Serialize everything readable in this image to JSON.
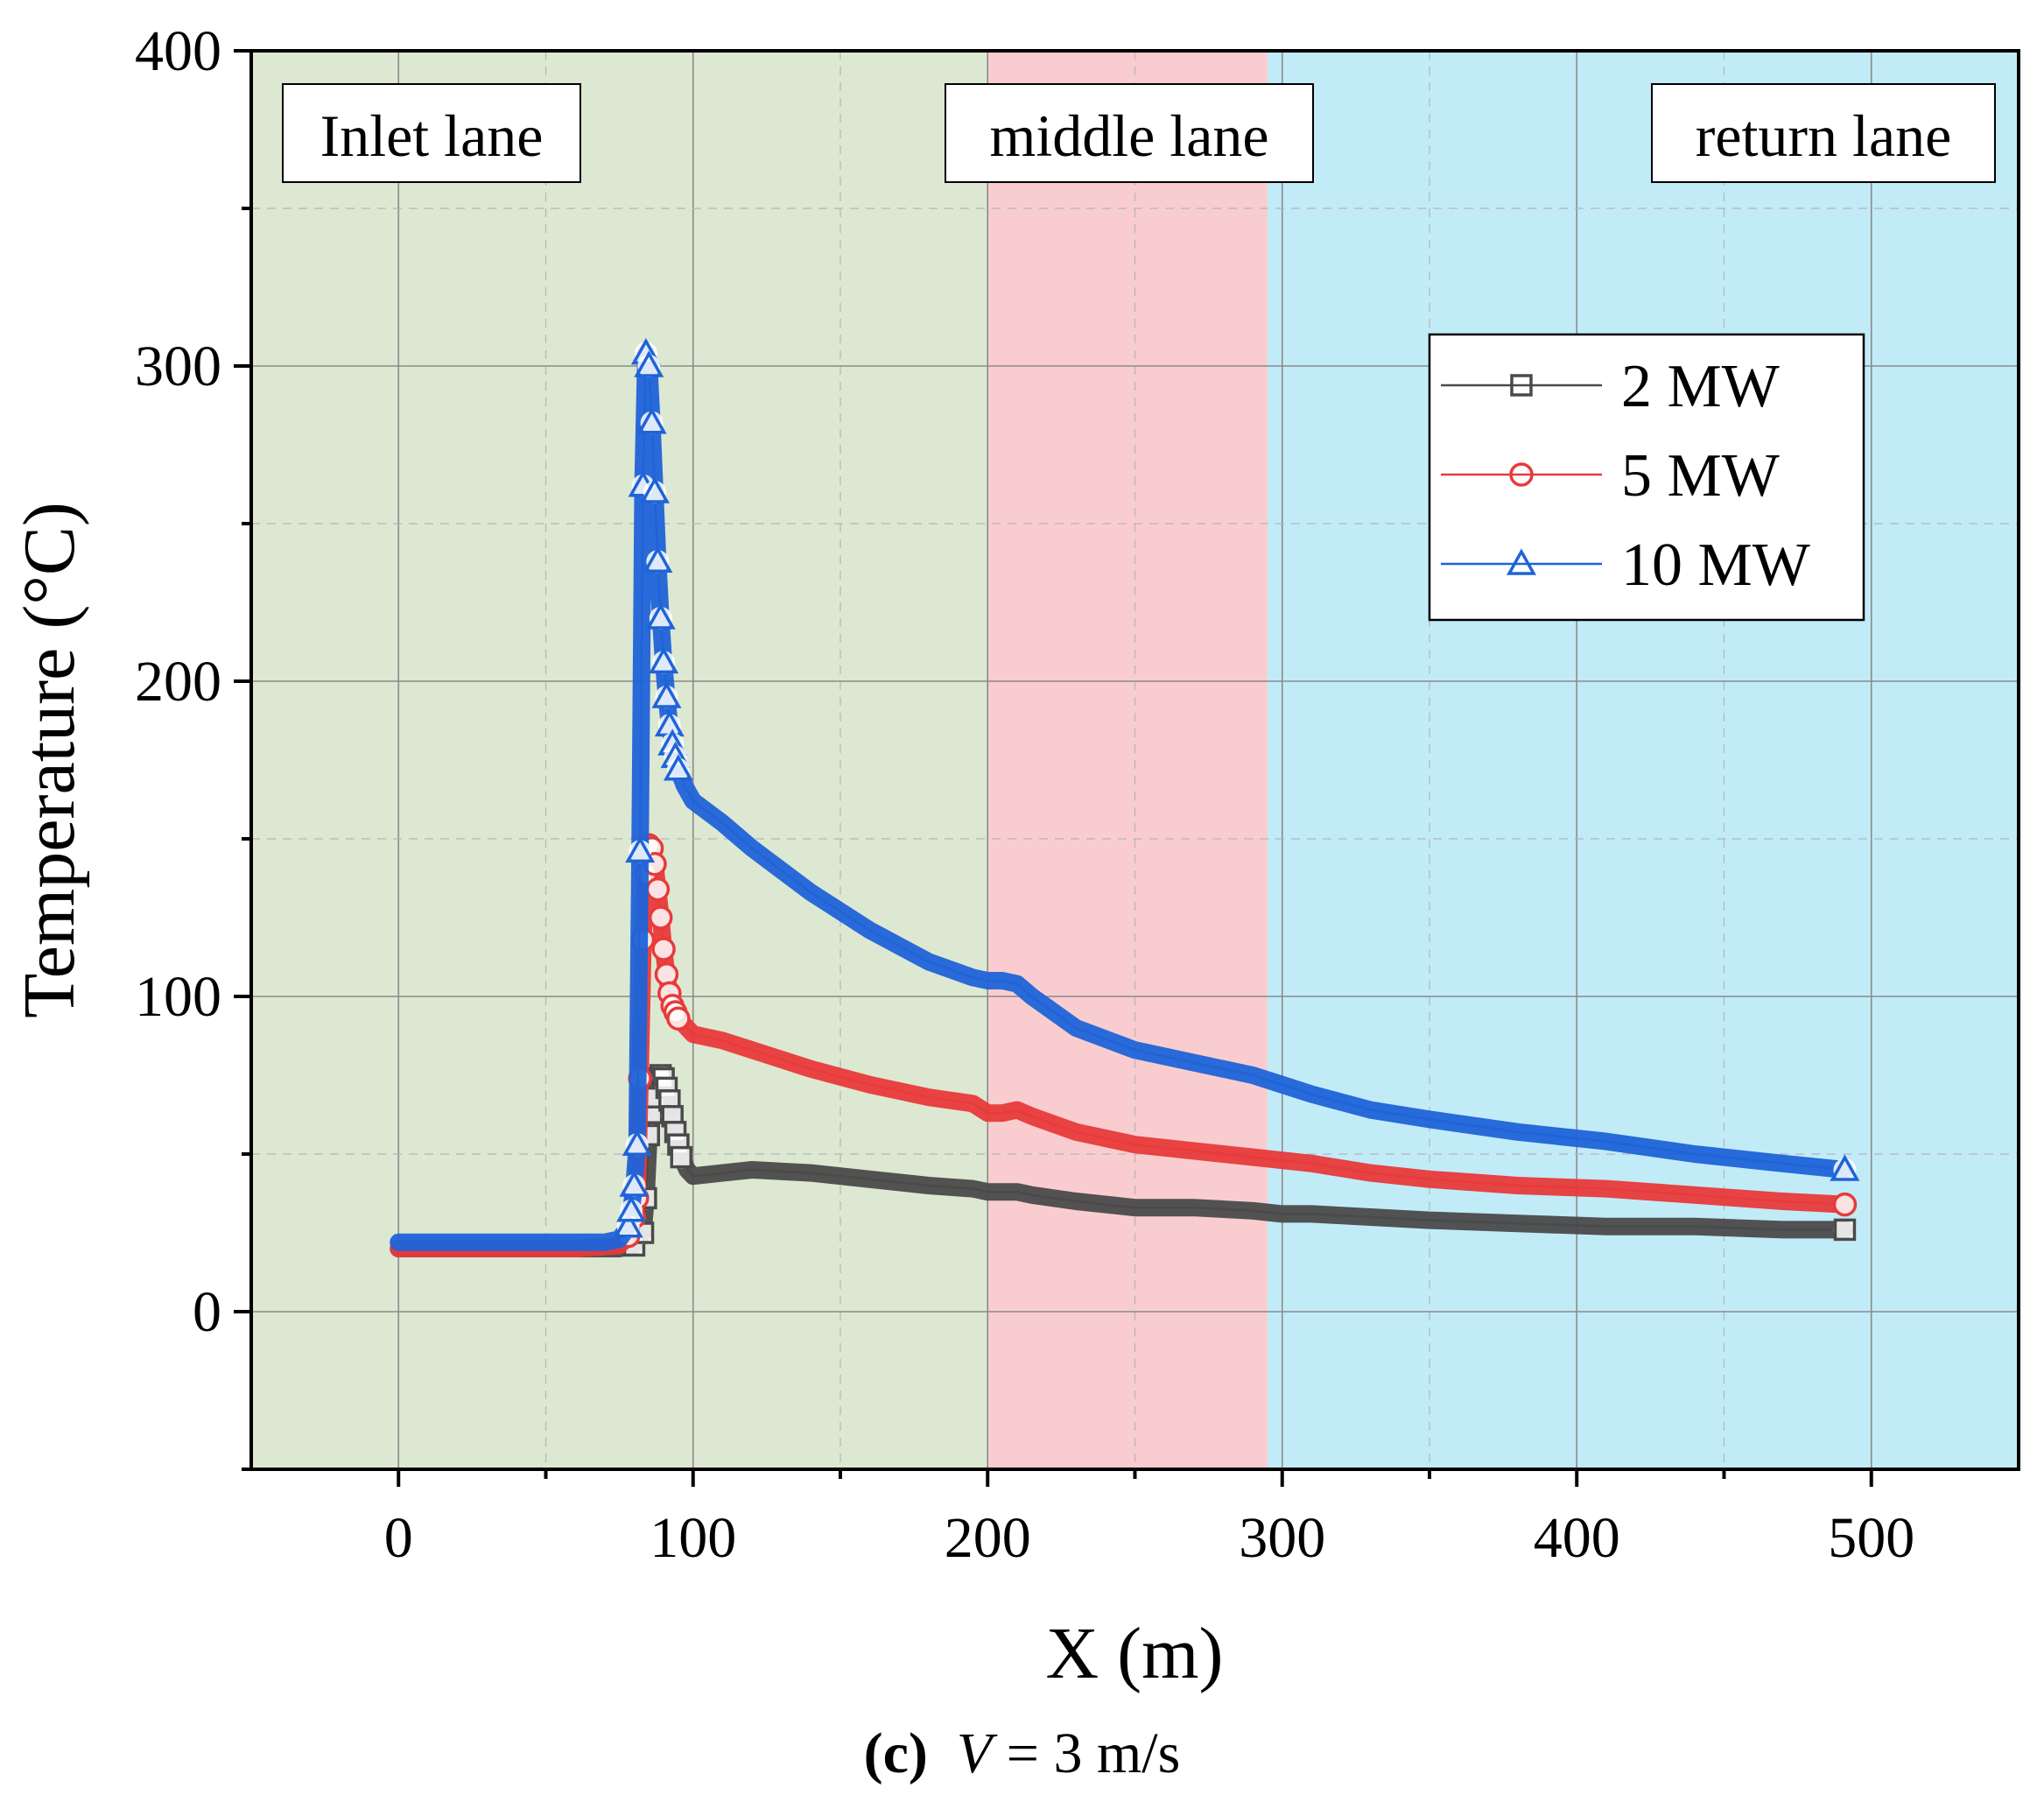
{
  "chart_data": {
    "type": "line",
    "title": "",
    "xlabel": "X (m)",
    "ylabel": "Temperature (°C)",
    "xlim": [
      -50,
      550
    ],
    "ylim": [
      -50,
      400
    ],
    "x_ticks": [
      0,
      100,
      200,
      300,
      400,
      500
    ],
    "y_ticks": [
      0,
      100,
      200,
      300,
      400
    ],
    "grid": true,
    "legend_position": "upper-right",
    "regions": [
      {
        "label": "Inlet lane",
        "x_start": -50,
        "x_end": 200,
        "color": "#dde8d2"
      },
      {
        "label": "middle lane",
        "x_start": 200,
        "x_end": 295,
        "color": "#f9cdcf"
      },
      {
        "label": "return lane",
        "x_start": 295,
        "x_end": 550,
        "color": "#c2ebf8"
      }
    ],
    "series": [
      {
        "name": "2 MW",
        "color": "#4a4a4a",
        "marker": "square",
        "x": [
          0,
          20,
          40,
          60,
          75,
          80,
          83,
          84,
          85,
          86,
          87,
          88,
          89,
          90,
          91,
          92,
          93,
          94,
          95,
          96,
          98,
          100,
          110,
          120,
          140,
          160,
          180,
          195,
          200,
          205,
          210,
          215,
          230,
          250,
          270,
          290,
          300,
          310,
          330,
          350,
          380,
          410,
          440,
          470,
          491
        ],
        "y": [
          20,
          20,
          20,
          20,
          20,
          21,
          25,
          36,
          56,
          63,
          68,
          74,
          75,
          74,
          71,
          67,
          62,
          57,
          53,
          49,
          45,
          43,
          44,
          45,
          44,
          42,
          40,
          39,
          38,
          38,
          38,
          37,
          35,
          33,
          33,
          32,
          31,
          31,
          30,
          29,
          28,
          27,
          27,
          26,
          26
        ]
      },
      {
        "name": "5 MW",
        "color": "#e83a3a",
        "marker": "circle",
        "x": [
          0,
          20,
          40,
          60,
          75,
          78,
          80,
          81,
          82,
          83,
          84,
          85,
          86,
          87,
          88,
          89,
          90,
          91,
          92,
          93,
          94,
          95,
          97,
          100,
          110,
          120,
          140,
          160,
          180,
          195,
          200,
          205,
          210,
          215,
          230,
          250,
          270,
          290,
          300,
          310,
          330,
          350,
          380,
          410,
          440,
          470,
          491
        ],
        "y": [
          20,
          20,
          20,
          20,
          21,
          24,
          30,
          36,
          74,
          118,
          139,
          148,
          147,
          142,
          134,
          125,
          115,
          107,
          101,
          97,
          95,
          93,
          91,
          88,
          86,
          83,
          77,
          72,
          68,
          66,
          63,
          63,
          64,
          62,
          57,
          53,
          51,
          49,
          48,
          47,
          44,
          42,
          40,
          39,
          37,
          35,
          34
        ]
      },
      {
        "name": "10 MW",
        "color": "#1f63d8",
        "marker": "triangle",
        "x": [
          0,
          20,
          40,
          60,
          70,
          75,
          78,
          79,
          80,
          81,
          82,
          83,
          84,
          85,
          86,
          87,
          88,
          89,
          90,
          91,
          92,
          93,
          94,
          95,
          97,
          100,
          110,
          120,
          140,
          160,
          180,
          195,
          200,
          205,
          210,
          215,
          230,
          250,
          270,
          290,
          300,
          310,
          330,
          350,
          380,
          410,
          440,
          470,
          491
        ],
        "y": [
          22,
          22,
          22,
          22,
          22,
          23,
          27,
          32,
          40,
          53,
          146,
          262,
          304,
          300,
          282,
          260,
          238,
          220,
          206,
          195,
          186,
          180,
          176,
          172,
          167,
          162,
          155,
          147,
          133,
          121,
          111,
          106,
          105,
          105,
          104,
          100,
          90,
          83,
          79,
          75,
          72,
          69,
          64,
          61,
          57,
          54,
          50,
          47,
          45
        ]
      }
    ]
  },
  "caption": {
    "label": "(c)",
    "variable": "V",
    "rest": " = 3 m/s"
  }
}
